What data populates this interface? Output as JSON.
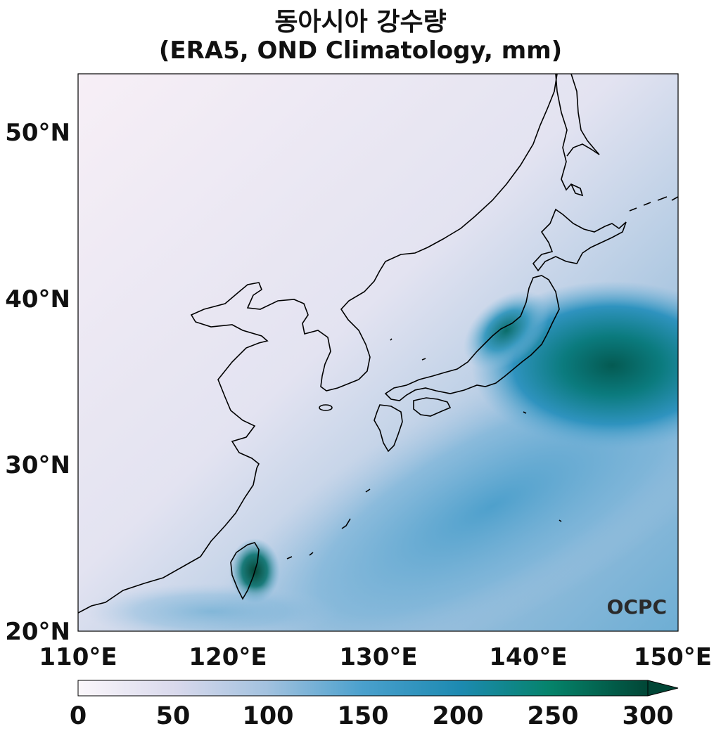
{
  "title": {
    "line1": "동아시아 강수량",
    "line2": "(ERA5, OND Climatology, mm)"
  },
  "map": {
    "lon_ticks": [
      "110°E",
      "120°E",
      "130°E",
      "140°E",
      "150°E"
    ],
    "lat_ticks": [
      "50°N",
      "40°N",
      "30°N",
      "20°N"
    ],
    "logo": "OCPC"
  },
  "colorbar": {
    "ticks": [
      "0",
      "50",
      "100",
      "150",
      "200",
      "250",
      "300"
    ],
    "colors": [
      "#fbf7fb",
      "#d9d9ec",
      "#a3c2df",
      "#4aa0cd",
      "#1d8ab1",
      "#05836a",
      "#014636"
    ]
  }
}
